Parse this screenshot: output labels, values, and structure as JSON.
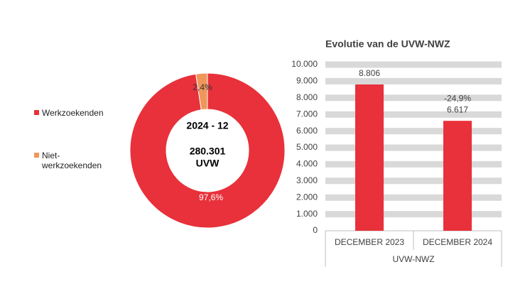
{
  "chart_data": [
    {
      "type": "pie",
      "donut": true,
      "categories": [
        "Werkzoekenden",
        "Niet-werkzoekenden"
      ],
      "values": [
        97.6,
        2.4
      ],
      "value_labels": [
        "97,6%",
        "2,4%"
      ],
      "colors": [
        "#e8313a",
        "#f0965a"
      ],
      "center_labels": [
        "2024 - 12",
        "280.301",
        "UVW"
      ]
    },
    {
      "type": "bar",
      "title": "Evolutie van de UVW-NWZ",
      "categories": [
        "DECEMBER 2023",
        "DECEMBER 2024"
      ],
      "x_group_label": "UVW-NWZ",
      "values": [
        8806,
        6617
      ],
      "value_labels": [
        "8.806",
        "6.617"
      ],
      "annotations": [
        null,
        "-24,9%"
      ],
      "color": "#e8313a",
      "ylim": [
        0,
        10000
      ],
      "yticks": [
        0,
        {
          "value": 1000,
          "label": "1.000"
        },
        {
          "value": 2000,
          "label": "2.000"
        },
        {
          "value": 3000,
          "label": "3.000"
        },
        {
          "value": 4000,
          "label": "4.000"
        },
        {
          "value": 5000,
          "label": "5.000"
        },
        {
          "value": 6000,
          "label": "6.000"
        },
        {
          "value": 7000,
          "label": "7.000"
        },
        {
          "value": 8000,
          "label": "8.000"
        },
        {
          "value": 9000,
          "label": "9.000"
        },
        {
          "value": 10000,
          "label": "10.000"
        }
      ],
      "grid": true
    }
  ]
}
